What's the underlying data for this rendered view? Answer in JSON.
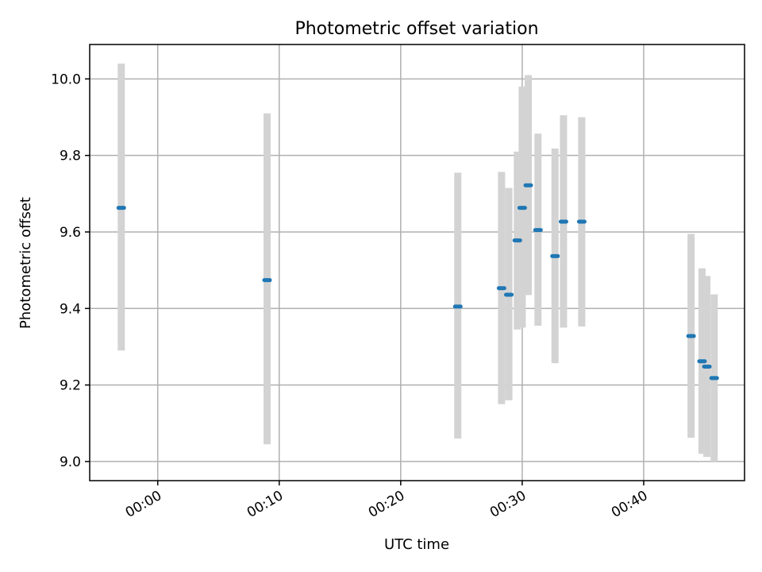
{
  "chart_data": {
    "type": "scatter",
    "title": "Photometric offset variation",
    "xlabel": "UTC time",
    "ylabel": "Photometric offset",
    "x_unit": "minutes UTC (HH:MM)",
    "xlim": [
      -5.6,
      48.3
    ],
    "ylim": [
      8.95,
      10.09
    ],
    "grid": true,
    "x_ticks": [
      {
        "value": 0,
        "label": "00:00"
      },
      {
        "value": 10,
        "label": "00:10"
      },
      {
        "value": 20,
        "label": "00:20"
      },
      {
        "value": 30,
        "label": "00:30"
      },
      {
        "value": 40,
        "label": "00:40"
      }
    ],
    "y_ticks": [
      {
        "value": 9.0,
        "label": "9.0"
      },
      {
        "value": 9.2,
        "label": "9.2"
      },
      {
        "value": 9.4,
        "label": "9.4"
      },
      {
        "value": 9.6,
        "label": "9.6"
      },
      {
        "value": 9.8,
        "label": "9.8"
      },
      {
        "value": 10.0,
        "label": "10.0"
      }
    ],
    "colors": {
      "point": "#1f77b4",
      "errorbar": "#d3d3d3"
    },
    "points": [
      {
        "x": "23:57",
        "y": 9.663,
        "lo": 9.29,
        "hi": 10.04
      },
      {
        "x": "00:09",
        "y": 9.474,
        "lo": 9.045,
        "hi": 9.91
      },
      {
        "x": "00:24.7",
        "y": 9.405,
        "lo": 9.06,
        "hi": 9.755
      },
      {
        "x": "00:28.3",
        "y": 9.453,
        "lo": 9.15,
        "hi": 9.757
      },
      {
        "x": "00:28.9",
        "y": 9.436,
        "lo": 9.16,
        "hi": 9.715
      },
      {
        "x": "00:29.6",
        "y": 9.578,
        "lo": 9.345,
        "hi": 9.81
      },
      {
        "x": "00:30.0",
        "y": 9.663,
        "lo": 9.35,
        "hi": 9.98
      },
      {
        "x": "00:30.5",
        "y": 9.722,
        "lo": 9.435,
        "hi": 10.01
      },
      {
        "x": "00:31.3",
        "y": 9.605,
        "lo": 9.355,
        "hi": 9.857
      },
      {
        "x": "00:32.7",
        "y": 9.537,
        "lo": 9.257,
        "hi": 9.818
      },
      {
        "x": "00:33.4",
        "y": 9.627,
        "lo": 9.35,
        "hi": 9.905
      },
      {
        "x": "00:34.9",
        "y": 9.627,
        "lo": 9.353,
        "hi": 9.9
      },
      {
        "x": "00:43.9",
        "y": 9.328,
        "lo": 9.062,
        "hi": 9.595
      },
      {
        "x": "00:44.8",
        "y": 9.262,
        "lo": 9.02,
        "hi": 9.505
      },
      {
        "x": "00:45.2",
        "y": 9.248,
        "lo": 9.012,
        "hi": 9.485
      },
      {
        "x": "00:45.8",
        "y": 9.218,
        "lo": 9.0,
        "hi": 9.437
      }
    ]
  }
}
